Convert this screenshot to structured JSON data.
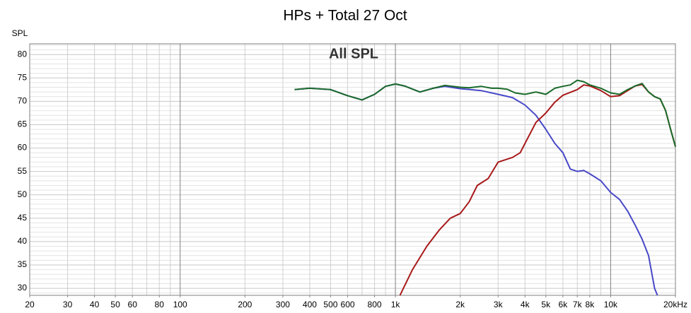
{
  "chart_data": {
    "type": "line",
    "title": "HPs + Total 27 Oct",
    "ylabel": "SPL",
    "annotation": "All SPL",
    "xscale": "log",
    "xlim": [
      20,
      20000
    ],
    "ylim": [
      28.5,
      82.3
    ],
    "xticks": [
      20,
      30,
      40,
      50,
      60,
      80,
      100,
      200,
      300,
      400,
      500,
      600,
      800,
      {
        "value": 1000,
        "label": "1k"
      },
      {
        "value": 2000,
        "label": "2k"
      },
      {
        "value": 3000,
        "label": "3k"
      },
      {
        "value": 4000,
        "label": "4k"
      },
      {
        "value": 5000,
        "label": "5k"
      },
      {
        "value": 6000,
        "label": "6k"
      },
      {
        "value": 7000,
        "label": "7k"
      },
      {
        "value": 8000,
        "label": "8k"
      },
      {
        "value": 10000,
        "label": "10k"
      },
      {
        "value": 20000,
        "label": "20kHz"
      }
    ],
    "yticks": [
      30,
      35,
      40,
      45,
      50,
      55,
      60,
      65,
      70,
      75,
      80
    ],
    "xgrid": [
      30,
      40,
      50,
      60,
      70,
      80,
      90,
      200,
      300,
      400,
      500,
      600,
      700,
      800,
      900,
      2000,
      3000,
      4000,
      5000,
      6000,
      7000,
      8000,
      9000
    ],
    "xmajor": [
      100,
      1000,
      10000
    ],
    "ygrid": [
      29,
      31,
      32,
      33,
      34,
      36,
      37,
      38,
      39,
      41,
      42,
      43,
      44,
      46,
      47,
      48,
      49,
      51,
      52,
      53,
      54,
      56,
      57,
      58,
      59,
      61,
      62,
      63,
      64,
      66,
      67,
      68,
      69,
      71,
      72,
      73,
      74,
      76,
      77,
      78,
      79,
      81,
      82
    ],
    "grid": true,
    "series": [
      {
        "color": "#4848c8",
        "x": [
          340,
          400,
          500,
          600,
          700,
          800,
          900,
          1000,
          1100,
          1300,
          1500,
          1700,
          2000,
          2500,
          3000,
          3500,
          4000,
          4500,
          5000,
          5500,
          6000,
          6500,
          7000,
          7500,
          8000,
          9000,
          10000,
          11000,
          12000,
          13000,
          14000,
          15000,
          16000,
          16500
        ],
        "values": [
          72.5,
          72.8,
          72.5,
          71.2,
          70.3,
          71.5,
          73.2,
          73.7,
          73.3,
          72,
          72.8,
          73.2,
          72.7,
          72.3,
          71.5,
          70.8,
          69.2,
          67,
          64,
          61,
          59,
          55.5,
          55,
          55.2,
          54.5,
          53,
          50.5,
          49,
          46.5,
          43.5,
          40.5,
          37,
          30,
          28.5
        ]
      },
      {
        "color": "#a81818",
        "x": [
          1050,
          1200,
          1400,
          1600,
          1800,
          2000,
          2200,
          2400,
          2700,
          3000,
          3500,
          3800,
          4000,
          4500,
          5000,
          5500,
          6000,
          7000,
          7500,
          8000,
          9000,
          10000,
          11000,
          12000,
          13000,
          14000,
          15000,
          16000,
          17000,
          18000,
          19000,
          20000
        ],
        "values": [
          28.5,
          34,
          39,
          42.5,
          45,
          46,
          48.5,
          52,
          53.5,
          57,
          58,
          59,
          61,
          65.5,
          67.5,
          69.8,
          71.3,
          72.5,
          73.5,
          73.3,
          72.3,
          71,
          71.2,
          72.3,
          73.3,
          73.6,
          72,
          71,
          70.5,
          68,
          64,
          60.3
        ]
      },
      {
        "color": "#1a6a2a",
        "x": [
          340,
          400,
          500,
          600,
          700,
          800,
          900,
          1000,
          1100,
          1300,
          1500,
          1700,
          2000,
          2200,
          2500,
          2800,
          3000,
          3300,
          3600,
          4000,
          4500,
          5000,
          5500,
          6000,
          6500,
          7000,
          7500,
          8000,
          9000,
          10000,
          11000,
          12000,
          13000,
          14000,
          15000,
          16000,
          17000,
          18000,
          19000,
          20000
        ],
        "values": [
          72.5,
          72.8,
          72.5,
          71.2,
          70.3,
          71.5,
          73.2,
          73.7,
          73.3,
          72,
          72.8,
          73.4,
          73,
          72.9,
          73.2,
          72.8,
          72.8,
          72.6,
          71.8,
          71.5,
          72,
          71.5,
          72.8,
          73.2,
          73.5,
          74.5,
          74.2,
          73.5,
          72.8,
          71.8,
          71.5,
          72.5,
          73.3,
          73.8,
          72,
          71,
          70.5,
          68,
          64,
          60.3
        ]
      }
    ]
  }
}
